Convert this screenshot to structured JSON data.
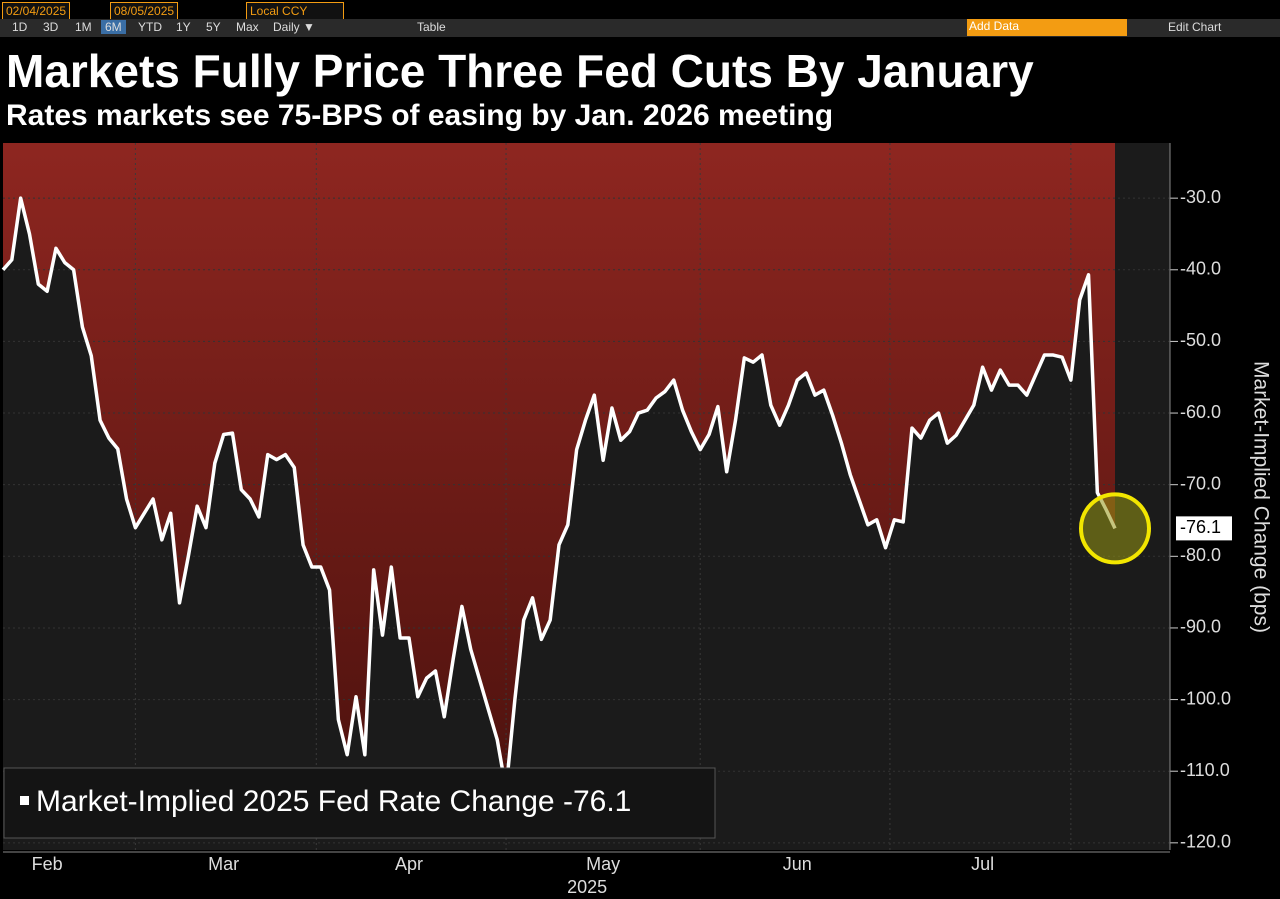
{
  "toolbar": {
    "start_date": "02/04/2025",
    "end_date": "08/05/2025",
    "currency": "Local CCY",
    "periods": [
      "1D",
      "3D",
      "1M",
      "6M",
      "YTD",
      "1Y",
      "5Y",
      "Max"
    ],
    "frequency": "Daily ▼",
    "table": "Table",
    "add_data": "Add Data",
    "edit_chart": "Edit Chart"
  },
  "chart_data": {
    "type": "line",
    "title": "Markets Fully Price Three Fed Cuts By January",
    "subtitle": "Rates markets see 75-BPS of easing by Jan. 2026 meeting",
    "y_label": "Market-Implied Change (bps)",
    "x_label": "2025",
    "categories": [
      null,
      null,
      null,
      null,
      null,
      "Feb",
      null,
      null,
      null,
      null,
      null,
      null,
      null,
      null,
      null,
      null,
      null,
      null,
      null,
      null,
      null,
      null,
      null,
      null,
      null,
      "Mar",
      null,
      null,
      null,
      null,
      null,
      null,
      null,
      null,
      null,
      null,
      null,
      null,
      null,
      null,
      null,
      null,
      null,
      null,
      null,
      null,
      "Apr",
      null,
      null,
      null,
      null,
      null,
      null,
      null,
      null,
      null,
      null,
      null,
      null,
      null,
      null,
      null,
      null,
      null,
      null,
      null,
      null,
      null,
      "May",
      null,
      null,
      null,
      null,
      null,
      null,
      null,
      null,
      null,
      null,
      null,
      null,
      null,
      null,
      null,
      null,
      null,
      null,
      null,
      null,
      null,
      "Jun",
      null,
      null,
      null,
      null,
      null,
      null,
      null,
      null,
      null,
      null,
      null,
      null,
      null,
      null,
      null,
      null,
      null,
      null,
      null,
      null,
      "Jul",
      null,
      null,
      null,
      null,
      null,
      null,
      null,
      null,
      null,
      null,
      null,
      null,
      null,
      null,
      null
    ],
    "series": [
      {
        "name": "Market-Implied 2025 Fed Rate Change",
        "color": "#ffffff",
        "values": [
          -40,
          -38.6,
          -30,
          -35,
          -42,
          -43,
          -37,
          -39,
          -40,
          -48,
          -52,
          -61,
          -63.5,
          -65,
          -72,
          -76,
          -74,
          -72,
          -77.7,
          -74,
          -86.5,
          -80,
          -73,
          -76,
          -67,
          -63,
          -62.8,
          -70.7,
          -72,
          -74.5,
          -65.8,
          -66.5,
          -65.8,
          -67.6,
          -78.4,
          -81.5,
          -81.5,
          -84.7,
          -102.8,
          -107.7,
          -99.6,
          -107.7,
          -81.9,
          -91,
          -81.5,
          -91.4,
          -91.4,
          -99.6,
          -97,
          -96,
          -102.4,
          -94.4,
          -87,
          -93,
          -97.2,
          -101.4,
          -105.6,
          -112.6,
          -100,
          -88.9,
          -85.8,
          -91.6,
          -88.9,
          -78.4,
          -75.6,
          -65.1,
          -61,
          -57.5,
          -66.6,
          -59.3,
          -63.8,
          -62.6,
          -60,
          -59.6,
          -57.9,
          -57,
          -55.4,
          -59.6,
          -62.6,
          -65.1,
          -63,
          -59.1,
          -68.2,
          -61,
          -52.3,
          -52.9,
          -51.9,
          -58.9,
          -61.7,
          -58.9,
          -55.4,
          -54.4,
          -57.5,
          -56.8,
          -60.3,
          -64.2,
          -68.6,
          -72.1,
          -75.6,
          -74.9,
          -78.8,
          -74.9,
          -75.2,
          -62.1,
          -63.5,
          -61,
          -60,
          -64.2,
          -63.1,
          -61,
          -58.9,
          -53.6,
          -56.8,
          -54,
          -56.1,
          -56.1,
          -57.5,
          -54.7,
          -51.9,
          -51.9,
          -52.2,
          -55.4,
          -44.2,
          -40.7,
          -71.1,
          -73.5,
          -76.1
        ]
      }
    ],
    "fill_color": "#7a1e1a",
    "ylim": [
      -121,
      -22.3
    ],
    "yticks": [
      {
        "value": -30,
        "label": "-30.0"
      },
      {
        "value": -40,
        "label": "-40.0"
      },
      {
        "value": -50,
        "label": "-50.0"
      },
      {
        "value": -60,
        "label": "-60.0"
      },
      {
        "value": -70,
        "label": "-70.0"
      },
      {
        "value": -80,
        "label": "-80.0"
      },
      {
        "value": -90,
        "label": "-90.0"
      },
      {
        "value": -100,
        "label": "-100.0"
      },
      {
        "value": -110,
        "label": "-110.0"
      },
      {
        "value": -120,
        "label": "-120.0"
      }
    ]
  }
}
